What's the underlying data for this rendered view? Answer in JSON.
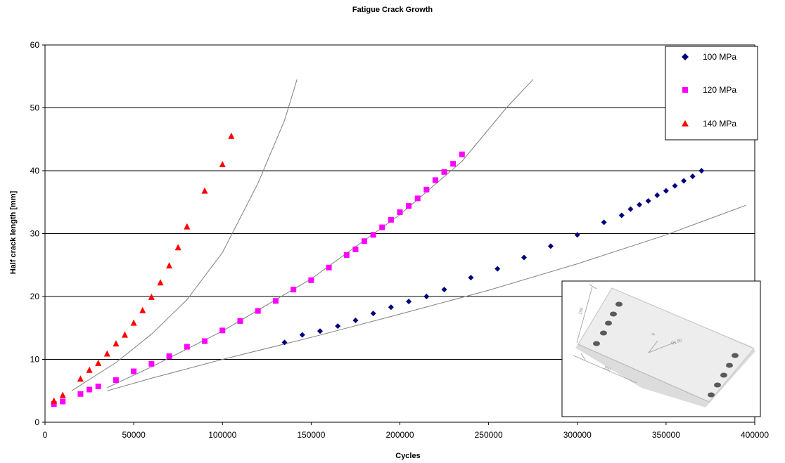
{
  "chart_data": {
    "type": "scatter",
    "title": "Fatigue Crack Growth",
    "xlabel": "Cycles",
    "ylabel": "Half crack length [mm]",
    "xlim": [
      0,
      400000
    ],
    "ylim": [
      0,
      60
    ],
    "x_ticks": [
      "0",
      "50000",
      "100000",
      "150000",
      "200000",
      "250000",
      "300000",
      "350000",
      "400000"
    ],
    "y_ticks": [
      "0",
      "10",
      "20",
      "30",
      "40",
      "50",
      "60"
    ],
    "grid": "horizontal",
    "legend_position": "top-right",
    "series": [
      {
        "name": "100 MPa",
        "marker": "diamond",
        "color": "#000080",
        "points": [
          [
            135000,
            12.7
          ],
          [
            145000,
            13.9
          ],
          [
            155000,
            14.5
          ],
          [
            165000,
            15.3
          ],
          [
            175000,
            16.2
          ],
          [
            185000,
            17.3
          ],
          [
            195000,
            18.3
          ],
          [
            205000,
            19.2
          ],
          [
            215000,
            20.0
          ],
          [
            225000,
            21.1
          ],
          [
            240000,
            23.0
          ],
          [
            255000,
            24.4
          ],
          [
            270000,
            26.2
          ],
          [
            285000,
            28.0
          ],
          [
            300000,
            29.8
          ],
          [
            315000,
            31.8
          ],
          [
            325000,
            32.9
          ],
          [
            330000,
            33.9
          ],
          [
            335000,
            34.6
          ],
          [
            340000,
            35.2
          ],
          [
            345000,
            36.1
          ],
          [
            350000,
            36.8
          ],
          [
            355000,
            37.6
          ],
          [
            360000,
            38.4
          ],
          [
            365000,
            39.1
          ],
          [
            370000,
            40.0
          ]
        ]
      },
      {
        "name": "120 MPa",
        "marker": "square",
        "color": "#ff00ff",
        "points": [
          [
            5000,
            2.9
          ],
          [
            10000,
            3.3
          ],
          [
            20000,
            4.5
          ],
          [
            25000,
            5.2
          ],
          [
            30000,
            5.7
          ],
          [
            40000,
            6.7
          ],
          [
            50000,
            8.1
          ],
          [
            60000,
            9.3
          ],
          [
            70000,
            10.5
          ],
          [
            80000,
            12.0
          ],
          [
            90000,
            12.9
          ],
          [
            100000,
            14.6
          ],
          [
            110000,
            16.1
          ],
          [
            120000,
            17.7
          ],
          [
            130000,
            19.3
          ],
          [
            140000,
            21.1
          ],
          [
            150000,
            22.6
          ],
          [
            160000,
            24.6
          ],
          [
            170000,
            26.6
          ],
          [
            175000,
            27.5
          ],
          [
            180000,
            28.8
          ],
          [
            185000,
            29.8
          ],
          [
            190000,
            31.0
          ],
          [
            195000,
            32.2
          ],
          [
            200000,
            33.4
          ],
          [
            205000,
            34.4
          ],
          [
            210000,
            35.6
          ],
          [
            215000,
            37.0
          ],
          [
            220000,
            38.5
          ],
          [
            225000,
            39.8
          ],
          [
            230000,
            41.1
          ],
          [
            235000,
            42.6
          ]
        ]
      },
      {
        "name": "140 MPa",
        "marker": "triangle",
        "color": "#ff0000",
        "points": [
          [
            5000,
            3.4
          ],
          [
            10000,
            4.3
          ],
          [
            20000,
            6.9
          ],
          [
            25000,
            8.3
          ],
          [
            30000,
            9.4
          ],
          [
            35000,
            10.9
          ],
          [
            40000,
            12.5
          ],
          [
            45000,
            13.9
          ],
          [
            50000,
            15.8
          ],
          [
            55000,
            17.8
          ],
          [
            60000,
            19.9
          ],
          [
            65000,
            22.2
          ],
          [
            70000,
            24.9
          ],
          [
            75000,
            27.8
          ],
          [
            80000,
            31.1
          ],
          [
            90000,
            36.8
          ],
          [
            100000,
            41.0
          ],
          [
            105000,
            45.5
          ]
        ]
      }
    ],
    "fit_curves": [
      {
        "for": "140 MPa",
        "color": "#808080",
        "points": [
          [
            15000,
            5.0
          ],
          [
            40000,
            9.5
          ],
          [
            60000,
            14.0
          ],
          [
            80000,
            19.5
          ],
          [
            100000,
            27.0
          ],
          [
            120000,
            38.0
          ],
          [
            135000,
            48.0
          ],
          [
            142000,
            54.5
          ]
        ]
      },
      {
        "for": "120 MPa",
        "color": "#808080",
        "points": [
          [
            35000,
            5.5
          ],
          [
            60000,
            8.8
          ],
          [
            100000,
            14.5
          ],
          [
            150000,
            22.8
          ],
          [
            200000,
            33.0
          ],
          [
            235000,
            41.5
          ],
          [
            260000,
            50.0
          ],
          [
            275000,
            54.5
          ]
        ]
      },
      {
        "for": "100 MPa",
        "color": "#808080",
        "points": [
          [
            35000,
            5.0
          ],
          [
            60000,
            7.0
          ],
          [
            100000,
            10.0
          ],
          [
            150000,
            13.5
          ],
          [
            200000,
            17.2
          ],
          [
            250000,
            21.0
          ],
          [
            300000,
            25.2
          ],
          [
            350000,
            29.8
          ],
          [
            395000,
            34.5
          ]
        ]
      }
    ],
    "inset": {
      "description": "specimen-plate-drawing",
      "labels": [
        "150",
        "R1.50",
        "150",
        "5"
      ]
    }
  }
}
